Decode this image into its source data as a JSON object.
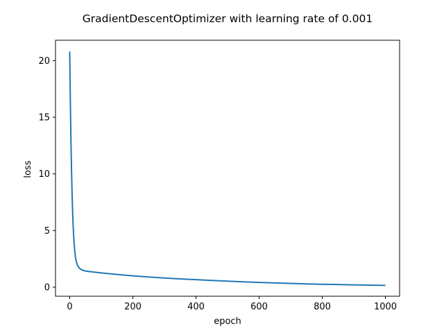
{
  "chart_data": {
    "type": "line",
    "title": "GradientDescentOptimizer with learning rate of 0.001",
    "xlabel": "epoch",
    "ylabel": "loss",
    "xlim": [
      -45,
      1045
    ],
    "ylim": [
      -0.8,
      21.8
    ],
    "xticks": [
      0,
      200,
      400,
      600,
      800,
      1000
    ],
    "yticks": [
      0,
      5,
      10,
      15,
      20
    ],
    "grid": false,
    "series": [
      {
        "color": "#1f77b4",
        "x": [
          0,
          2,
          4,
          6,
          8,
          10,
          12,
          14,
          16,
          18,
          20,
          25,
          30,
          35,
          40,
          45,
          50,
          60,
          80,
          100,
          150,
          200,
          250,
          300,
          350,
          400,
          450,
          500,
          550,
          600,
          650,
          700,
          750,
          800,
          850,
          900,
          950,
          1000
        ],
        "y": [
          20.8,
          16.4,
          12.8,
          10.0,
          7.8,
          6.0,
          4.8,
          3.9,
          3.2,
          2.7,
          2.35,
          1.9,
          1.7,
          1.58,
          1.5,
          1.46,
          1.43,
          1.39,
          1.32,
          1.26,
          1.12,
          1.0,
          0.9,
          0.81,
          0.73,
          0.66,
          0.59,
          0.53,
          0.47,
          0.42,
          0.37,
          0.33,
          0.29,
          0.26,
          0.23,
          0.2,
          0.18,
          0.16
        ]
      }
    ]
  }
}
